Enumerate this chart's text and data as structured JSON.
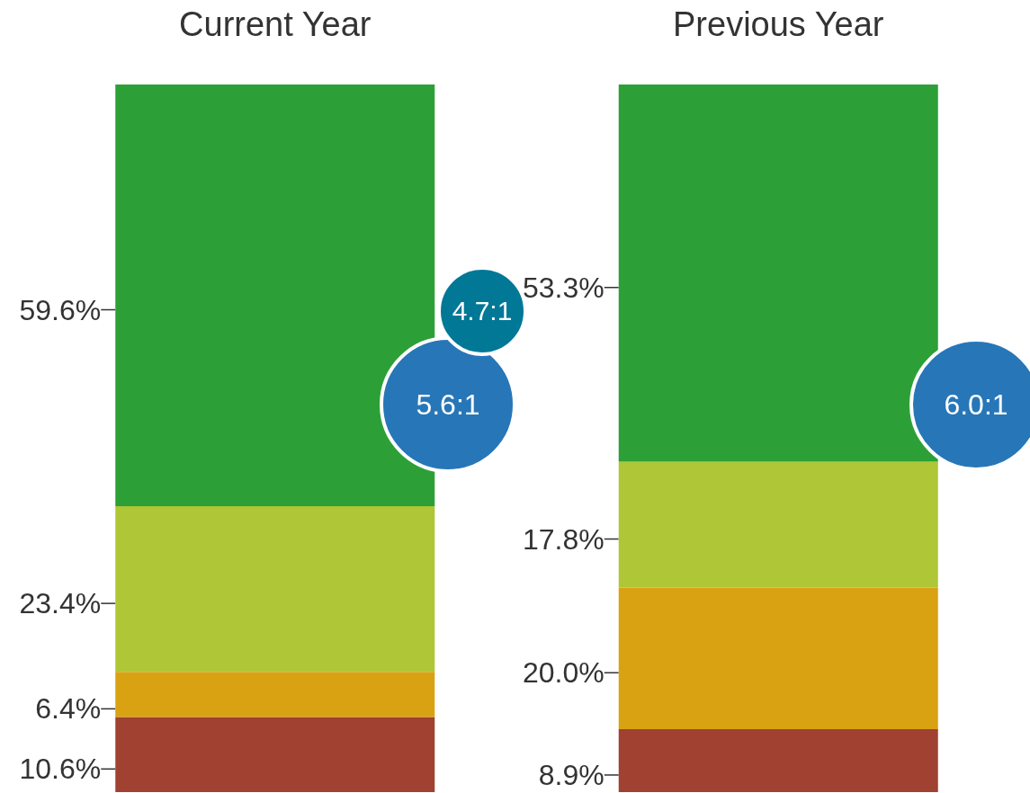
{
  "chart_data": {
    "type": "bar",
    "stacked": true,
    "categories": [
      "Current Year",
      "Previous Year"
    ],
    "series": [
      {
        "color": "#a04131",
        "values": [
          10.6,
          8.9
        ],
        "value_labels": [
          "10.6%",
          "8.9%"
        ]
      },
      {
        "color": "#d9a213",
        "values": [
          6.4,
          20.0
        ],
        "value_labels": [
          "6.4%",
          "20.0%"
        ]
      },
      {
        "color": "#afc636",
        "values": [
          23.4,
          17.8
        ],
        "value_labels": [
          "23.4%",
          "17.8%"
        ]
      },
      {
        "color": "#2ca037",
        "values": [
          59.6,
          53.3
        ],
        "value_labels": [
          "59.6%",
          "53.3%"
        ]
      }
    ],
    "annotations": [
      "4.7:1",
      "5.6:1",
      "6.0:1"
    ]
  }
}
